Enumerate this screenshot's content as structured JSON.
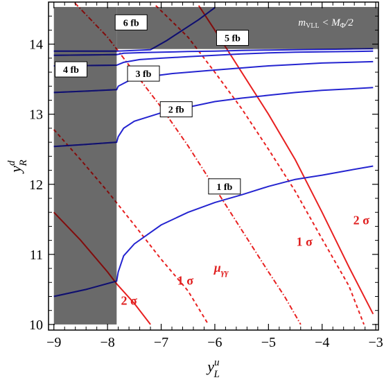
{
  "chart_data": {
    "type": "line",
    "xlabel": "y",
    "xlabel_sup": "u",
    "xlabel_sub": "L",
    "ylabel": "y",
    "ylabel_sup": "d",
    "ylabel_sub": "R",
    "xlim": [
      -9.1,
      -2.95
    ],
    "ylim": [
      9.92,
      14.6
    ],
    "xticks": [
      -9,
      -8,
      -7,
      -6,
      -5,
      -4,
      -3
    ],
    "yticks": [
      10,
      11,
      12,
      13,
      14
    ],
    "excluded_label": "m_VLL < M_Φ/2",
    "excluded_label_parts": {
      "m": "m",
      "sub": "VLL",
      "rest": " < M",
      "sub2": "Φ",
      "tail": "/2"
    },
    "excluded_regions": [
      {
        "x": [
          -9,
          -7.83
        ],
        "y": [
          10,
          14.53
        ]
      },
      {
        "x": [
          -7.83,
          -2.95
        ],
        "y": [
          13.93,
          14.53
        ]
      }
    ],
    "contours": [
      {
        "name": "1 fb",
        "label": "1 fb",
        "label_at": [
          -5.82,
          11.97
        ],
        "points": [
          [
            -9,
            10.4
          ],
          [
            -8.4,
            10.5
          ],
          [
            -7.83,
            10.62
          ],
          [
            -7.8,
            10.75
          ],
          [
            -7.7,
            10.98
          ],
          [
            -7.5,
            11.15
          ],
          [
            -7,
            11.42
          ],
          [
            -6.5,
            11.6
          ],
          [
            -6,
            11.74
          ],
          [
            -5.5,
            11.85
          ],
          [
            -5,
            11.97
          ],
          [
            -4.5,
            12.07
          ],
          [
            -4,
            12.13
          ],
          [
            -3.5,
            12.2
          ],
          [
            -3.05,
            12.26
          ]
        ]
      },
      {
        "name": "2 fb",
        "label": "2 fb",
        "label_at": [
          -6.72,
          13.07
        ],
        "points": [
          [
            -9,
            12.54
          ],
          [
            -8.4,
            12.57
          ],
          [
            -7.83,
            12.6
          ],
          [
            -7.8,
            12.68
          ],
          [
            -7.7,
            12.8
          ],
          [
            -7.5,
            12.9
          ],
          [
            -7,
            13.02
          ],
          [
            -6.5,
            13.1
          ],
          [
            -6,
            13.18
          ],
          [
            -5.5,
            13.23
          ],
          [
            -5,
            13.27
          ],
          [
            -4.5,
            13.31
          ],
          [
            -4,
            13.34
          ],
          [
            -3.5,
            13.36
          ],
          [
            -3.05,
            13.38
          ]
        ]
      },
      {
        "name": "3 fb",
        "label": "3 fb",
        "label_at": [
          -7.33,
          13.58
        ],
        "points": [
          [
            -9,
            13.31
          ],
          [
            -8.4,
            13.33
          ],
          [
            -7.83,
            13.35
          ],
          [
            -7.8,
            13.4
          ],
          [
            -7.6,
            13.48
          ],
          [
            -7.2,
            13.54
          ],
          [
            -6.8,
            13.58
          ],
          [
            -6,
            13.63
          ],
          [
            -5.5,
            13.66
          ],
          [
            -5,
            13.69
          ],
          [
            -4.5,
            13.71
          ],
          [
            -4,
            13.73
          ],
          [
            -3.5,
            13.74
          ],
          [
            -3.05,
            13.75
          ]
        ]
      },
      {
        "name": "4 fb",
        "label": "4 fb",
        "label_at": [
          -8.68,
          13.64
        ],
        "points": [
          [
            -9,
            13.69
          ],
          [
            -8.4,
            13.695
          ],
          [
            -7.83,
            13.7
          ],
          [
            -7.7,
            13.74
          ],
          [
            -7.4,
            13.78
          ],
          [
            -7,
            13.8
          ],
          [
            -6.5,
            13.82
          ],
          [
            -6,
            13.84
          ],
          [
            -5.5,
            13.86
          ],
          [
            -5,
            13.875
          ],
          [
            -4.5,
            13.885
          ],
          [
            -4,
            13.89
          ],
          [
            -3.5,
            13.895
          ],
          [
            -3.05,
            13.9
          ]
        ]
      },
      {
        "name": "5 fb",
        "label": "5 fb",
        "label_at": [
          -5.67,
          14.09
        ],
        "points": [
          [
            -9,
            13.84
          ],
          [
            -8.4,
            13.845
          ],
          [
            -7.83,
            13.85
          ],
          [
            -7.7,
            13.87
          ],
          [
            -7.3,
            13.88
          ],
          [
            -6.5,
            13.895
          ],
          [
            -6,
            13.9
          ],
          [
            -5.5,
            13.91
          ],
          [
            -5,
            13.915
          ],
          [
            -4.5,
            13.92
          ],
          [
            -4,
            13.925
          ],
          [
            -3.5,
            13.93
          ],
          [
            -3.05,
            13.935
          ]
        ]
      },
      {
        "name": "6 fb",
        "label": "6 fb",
        "label_at": [
          -7.56,
          14.31
        ],
        "points": [
          [
            -9,
            13.9
          ],
          [
            -8.4,
            13.9
          ],
          [
            -7.83,
            13.9
          ],
          [
            -7.5,
            13.91
          ],
          [
            -7.2,
            13.92
          ],
          [
            -6.9,
            14.05
          ],
          [
            -6.6,
            14.2
          ],
          [
            -6.3,
            14.35
          ],
          [
            -6,
            14.52
          ]
        ]
      }
    ],
    "mu_lines": [
      {
        "name": "μγγ",
        "label": "μγγ",
        "label_parts": {
          "base": "μ",
          "sub": "γγ"
        },
        "label_at": [
          -5.88,
          10.75
        ],
        "style": "dashdot",
        "points": [
          [
            -9,
            14.9
          ],
          [
            -8.5,
            14.5
          ],
          [
            -8,
            14.1
          ],
          [
            -7.5,
            13.6
          ],
          [
            -7,
            13.1
          ],
          [
            -6.5,
            12.55
          ],
          [
            -6,
            11.95
          ],
          [
            -5.5,
            11.35
          ],
          [
            -5,
            10.75
          ],
          [
            -4.7,
            10.4
          ],
          [
            -4.4,
            10
          ]
        ]
      },
      {
        "name": "1σ",
        "label": "1 σ",
        "label_at": [
          -6.55,
          10.57
        ],
        "label_at_2": [
          -4.33,
          11.12
        ],
        "style": "dashed",
        "points": [
          [
            -9,
            12.78
          ],
          [
            -8.5,
            12.35
          ],
          [
            -8,
            11.9
          ],
          [
            -7.5,
            11.42
          ],
          [
            -7,
            10.93
          ],
          [
            -6.5,
            10.48
          ],
          [
            -6.12,
            10
          ]
        ]
      },
      {
        "name": "1σ",
        "label": "",
        "style": "dashed",
        "points": [
          [
            -7.1,
            14.55
          ],
          [
            -6.5,
            14.1
          ],
          [
            -6,
            13.6
          ],
          [
            -5.5,
            13.08
          ],
          [
            -5,
            12.5
          ],
          [
            -4.5,
            11.9
          ],
          [
            -4,
            11.22
          ],
          [
            -3.5,
            10.55
          ],
          [
            -3.22,
            10
          ]
        ]
      },
      {
        "name": "2σ",
        "label": "2 σ",
        "label_at": [
          -7.6,
          10.28
        ],
        "label_at_2": [
          -3.27,
          11.43
        ],
        "style": "solid",
        "points": [
          [
            -9,
            11.6
          ],
          [
            -8.5,
            11.2
          ],
          [
            -8,
            10.75
          ],
          [
            -7.83,
            10.58
          ],
          [
            -7.5,
            10.3
          ],
          [
            -7.2,
            10
          ]
        ]
      },
      {
        "name": "2σ",
        "label": "",
        "style": "solid",
        "points": [
          [
            -6.3,
            14.55
          ],
          [
            -6,
            14.2
          ],
          [
            -5.5,
            13.6
          ],
          [
            -5,
            13
          ],
          [
            -4.5,
            12.35
          ],
          [
            -4,
            11.6
          ],
          [
            -3.5,
            10.82
          ],
          [
            -3.05,
            10.15
          ]
        ]
      }
    ],
    "colors": {
      "contour": "#2424d0",
      "contour_dark": "#10106a",
      "mu_line": "#e82020",
      "mu_line_dark": "#7a1010",
      "excluded": "#6a6a6a",
      "frame": "#000000"
    },
    "grid": false
  }
}
